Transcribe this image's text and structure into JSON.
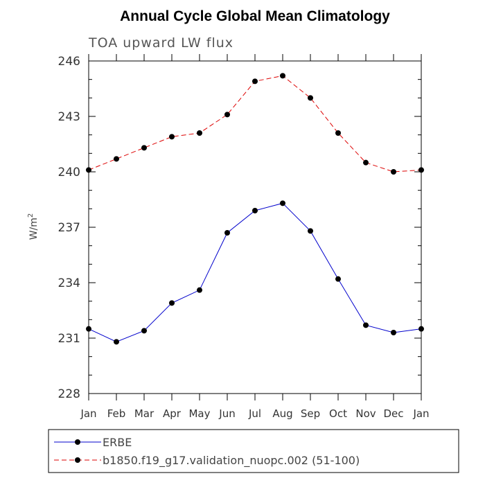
{
  "chart_data": {
    "type": "line",
    "title": "Annual Cycle Global Mean Climatology",
    "subtitle": "TOA upward LW flux",
    "xlabel": "",
    "ylabel": "W/m",
    "ylabel_superscript": "2",
    "categories": [
      "Jan",
      "Feb",
      "Mar",
      "Apr",
      "May",
      "Jun",
      "Jul",
      "Aug",
      "Sep",
      "Oct",
      "Nov",
      "Dec",
      "Jan"
    ],
    "ylim": [
      228,
      246
    ],
    "yticks": [
      228,
      231,
      234,
      237,
      240,
      243,
      246
    ],
    "grid": false,
    "legend_position": "bottom",
    "series": [
      {
        "name": "ERBE",
        "color": "#0000cc",
        "dash": "solid",
        "marker": "circle",
        "values": [
          231.5,
          230.8,
          231.4,
          232.9,
          233.6,
          236.7,
          237.9,
          238.3,
          236.8,
          234.2,
          231.7,
          231.3,
          231.5
        ]
      },
      {
        "name": "b1850.f19_g17.validation_nuopc.002 (51-100)",
        "color": "#dd0000",
        "dash": "dashed",
        "marker": "circle",
        "values": [
          240.1,
          240.7,
          241.3,
          241.9,
          242.1,
          243.1,
          244.9,
          245.2,
          244.0,
          242.1,
          240.5,
          240.0,
          240.1
        ]
      }
    ]
  }
}
